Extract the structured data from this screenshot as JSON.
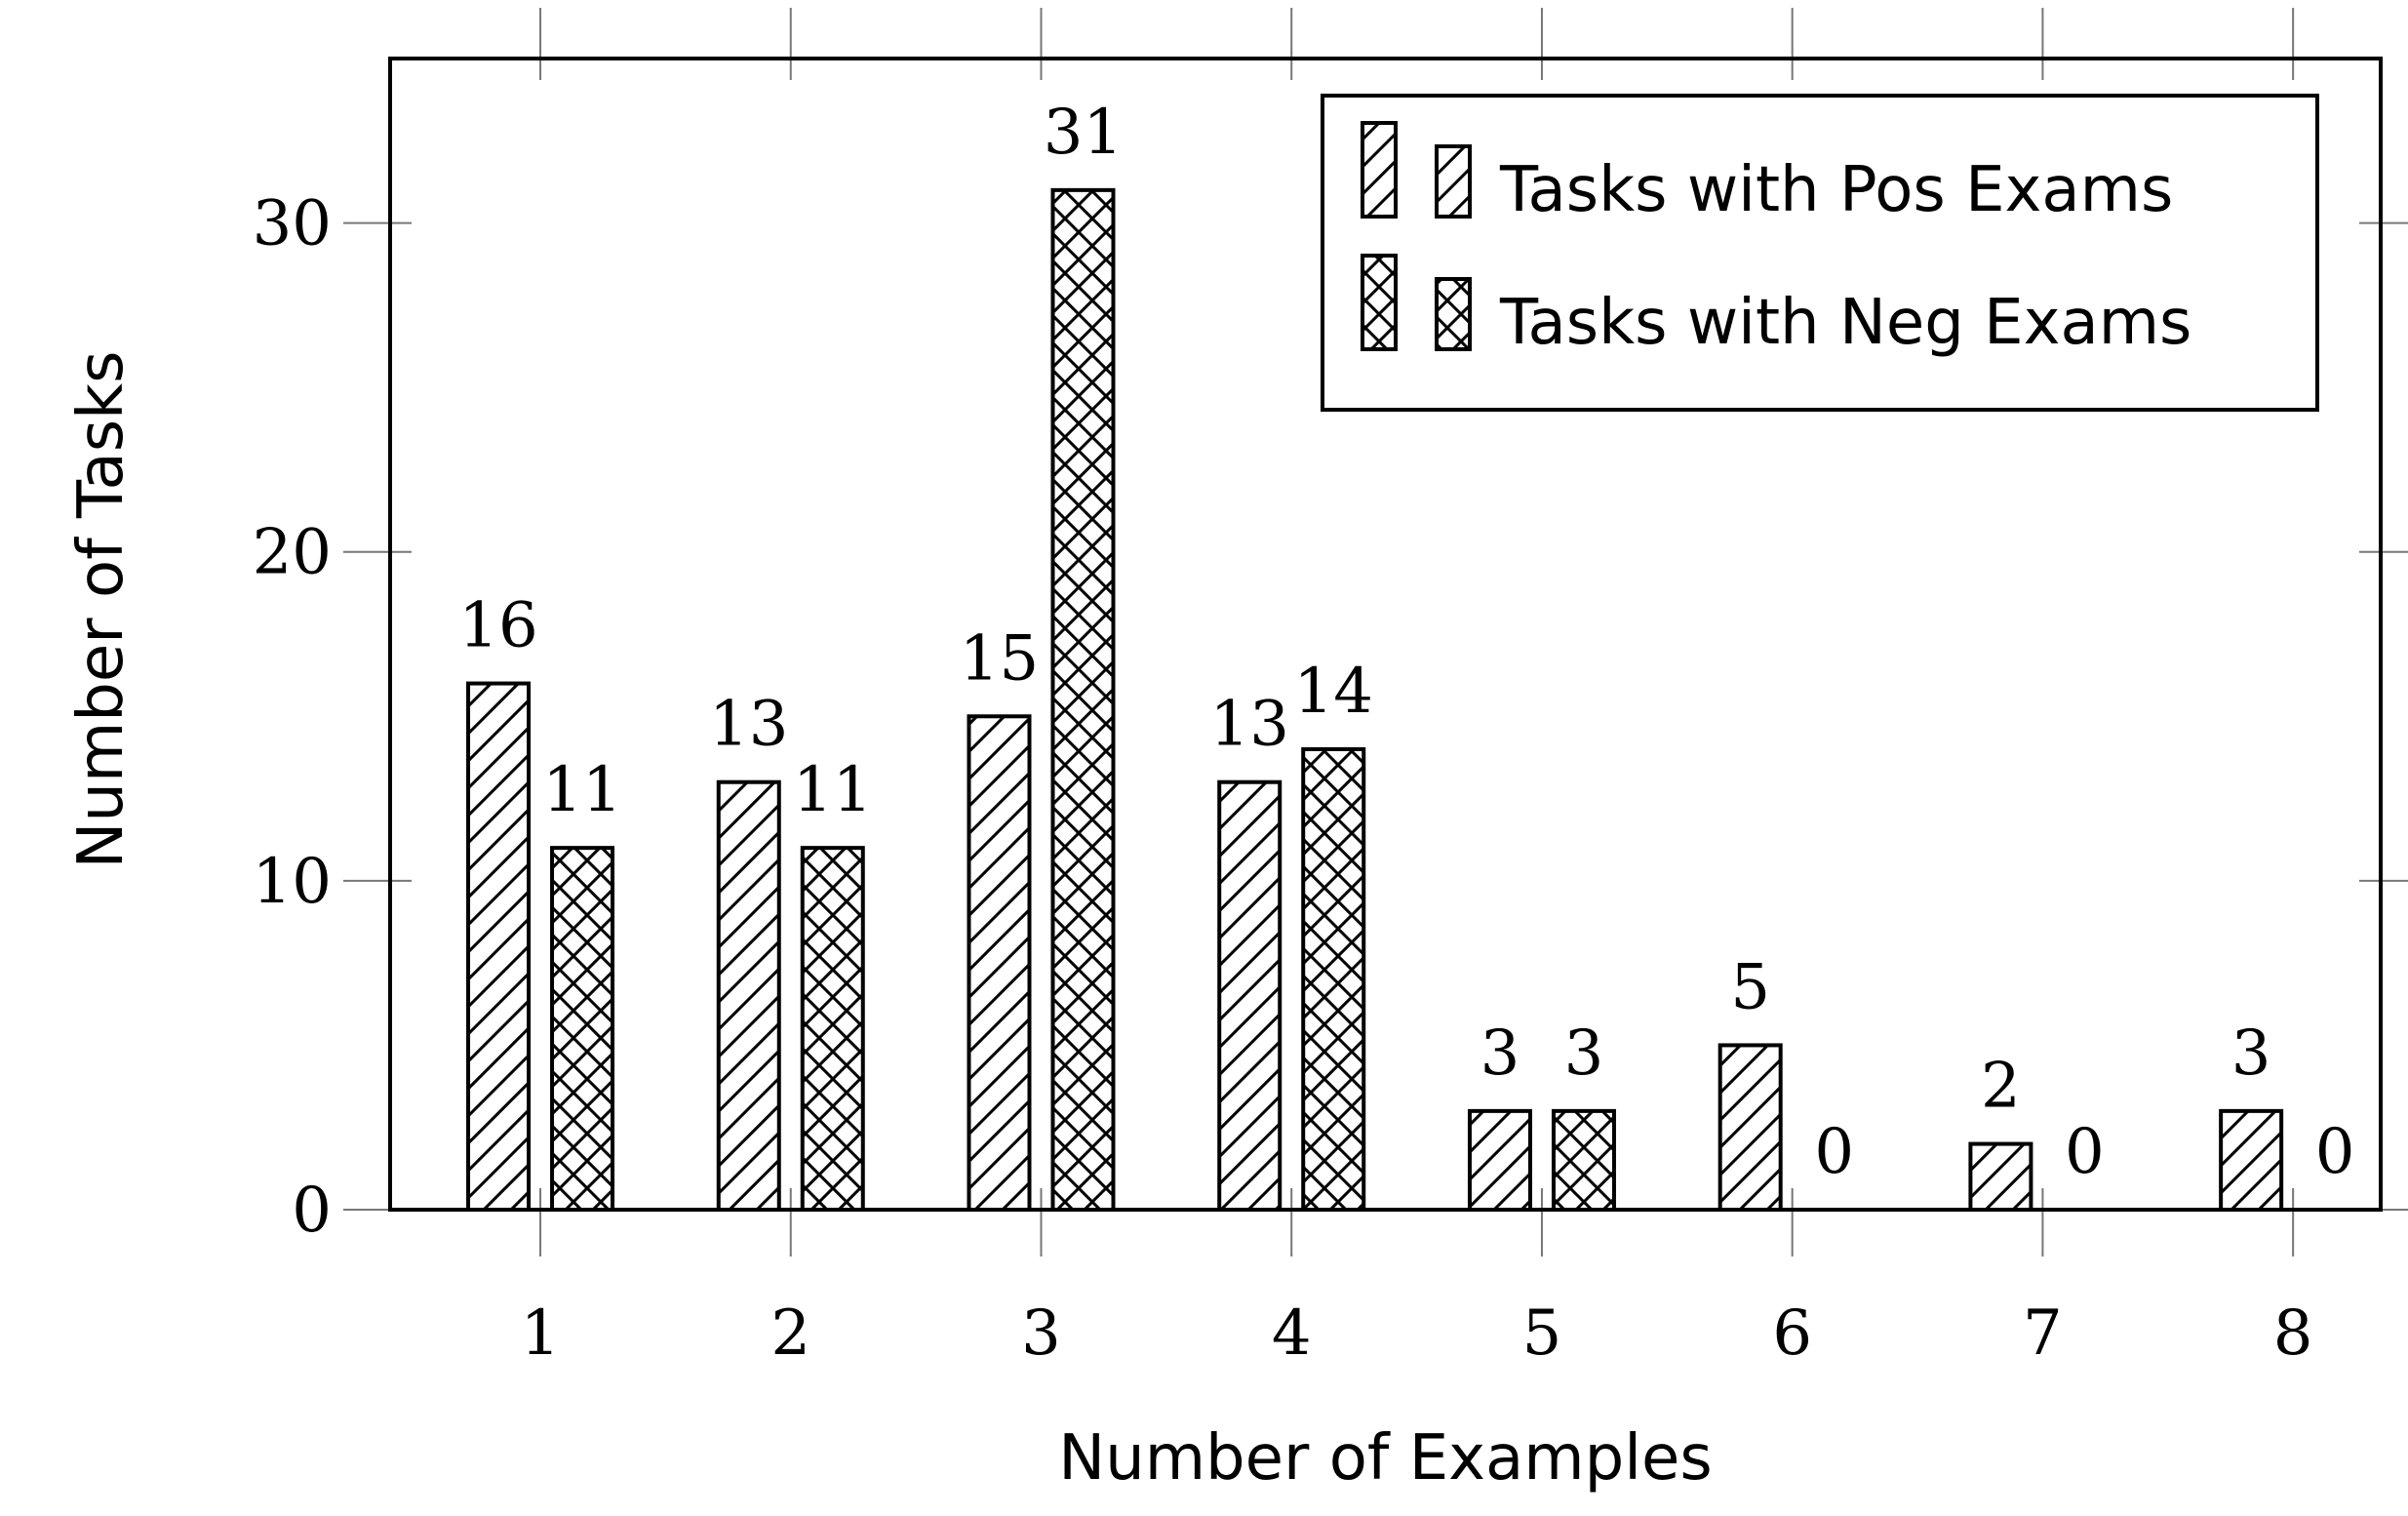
{
  "chart_data": {
    "type": "bar",
    "title": "",
    "xlabel": "Number of Examples",
    "ylabel": "Number of Tasks",
    "categories": [
      "1",
      "2",
      "3",
      "4",
      "5",
      "6",
      "7",
      "8"
    ],
    "series": [
      {
        "name": "Tasks with Pos Exams",
        "values": [
          16,
          13,
          15,
          13,
          3,
          5,
          2,
          3
        ],
        "pattern": "diagonal-hatch"
      },
      {
        "name": "Tasks with Neg Exams",
        "values": [
          11,
          11,
          31,
          14,
          3,
          0,
          0,
          0
        ],
        "pattern": "crosshatch"
      }
    ],
    "ylim": [
      0,
      35
    ],
    "xlim": [
      0.4,
      8.35
    ],
    "yticks": [
      0,
      10,
      20,
      30
    ],
    "grid": false,
    "legend_position": "top-right",
    "data_labels": true,
    "colors": {
      "stroke": "#000000",
      "fill": "#ffffff"
    }
  }
}
